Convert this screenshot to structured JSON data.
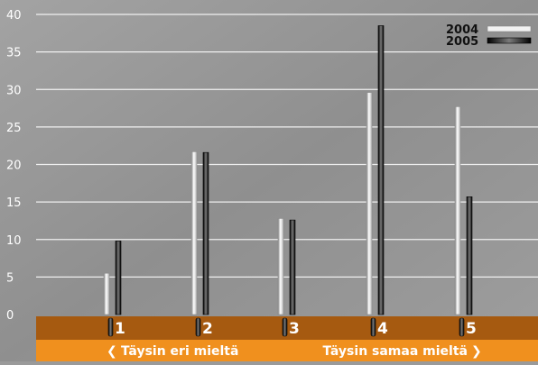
{
  "chart_data": {
    "type": "bar",
    "categories": [
      "1",
      "2",
      "3",
      "4",
      "5"
    ],
    "series": [
      {
        "name": "2004",
        "values": [
          5.5,
          21.7,
          12.8,
          29.6,
          27.7
        ],
        "color": "#e8e8e8"
      },
      {
        "name": "2005",
        "values": [
          9.8,
          21.6,
          12.6,
          38.5,
          15.7
        ],
        "color": "#1a1a1a"
      }
    ],
    "yticks": [
      0,
      5,
      10,
      15,
      20,
      25,
      30,
      35,
      40
    ],
    "ylim": [
      0,
      40
    ],
    "grid": true,
    "legend_position": "top-right",
    "title": "",
    "xlabel": "",
    "ylabel": ""
  },
  "footer": {
    "left_label": "Täysin eri mieltä",
    "right_label": "Täysin samaa mieltä"
  },
  "colors": {
    "background": "#9a9a9a",
    "axis_band": "#a65a10",
    "footer_band": "#f0901e",
    "gridline": "#ffffff"
  },
  "icons": {
    "left_arrow": "chevron-left-icon",
    "right_arrow": "chevron-right-icon"
  }
}
